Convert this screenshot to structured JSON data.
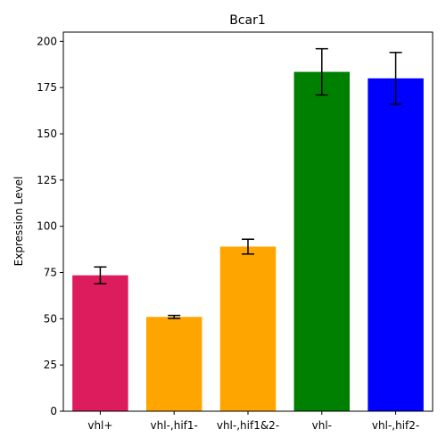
{
  "chart_data": {
    "type": "bar",
    "title": "Bcar1",
    "xlabel": "",
    "ylabel": "Expression Level",
    "ylim": [
      0,
      205
    ],
    "yticks": [
      0,
      25,
      50,
      75,
      100,
      125,
      150,
      175,
      200
    ],
    "categories": [
      "vhl+",
      "vhl-,hif1-",
      "vhl-,hif1&2-",
      "vhl-",
      "vhl-,hif2-"
    ],
    "values": [
      73.5,
      51,
      89,
      183.5,
      180
    ],
    "errors": [
      4.5,
      0.8,
      4,
      12.5,
      14
    ],
    "colors": [
      "#dc1c5c",
      "#ffa500",
      "#ffa500",
      "#008000",
      "#0000ff"
    ],
    "grid": false,
    "legend": "none"
  }
}
